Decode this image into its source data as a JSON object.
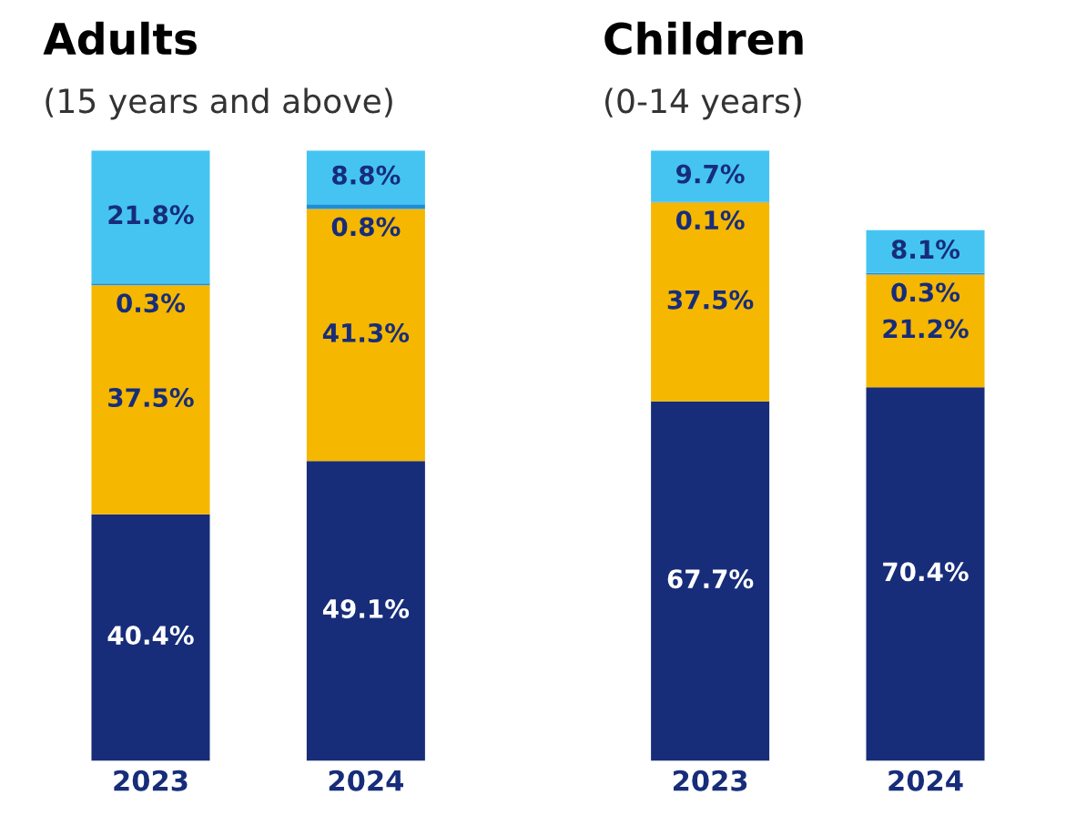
{
  "chart_data": [
    {
      "type": "bar",
      "title": "Adults",
      "subtitle": "(15 years and above)",
      "categories": [
        "2023",
        "2024"
      ],
      "stacked": true,
      "tick_labels": "x",
      "grid": false,
      "legend": false,
      "series": [
        {
          "color": "#172d7a",
          "values": [
            40.4,
            49.1
          ],
          "value_labels": [
            "40.4%",
            "49.1%"
          ]
        },
        {
          "color": "#f5b700",
          "values": [
            37.5,
            41.3
          ],
          "value_labels": [
            "37.5%",
            "41.3%"
          ]
        },
        {
          "color": "#1d8fd6",
          "values": [
            0.3,
            0.8
          ],
          "value_labels": [
            "0.3%",
            "0.8%"
          ]
        },
        {
          "color": "#45c4f2",
          "values": [
            21.8,
            8.8
          ],
          "value_labels": [
            "21.8%",
            "8.8%"
          ]
        }
      ]
    },
    {
      "type": "bar",
      "title": "Children",
      "subtitle": "(0-14 years)",
      "categories": [
        "2023",
        "2024"
      ],
      "stacked": true,
      "tick_labels": "x",
      "grid": false,
      "legend": false,
      "series": [
        {
          "color": "#172d7a",
          "values": [
            67.7,
            70.4
          ],
          "value_labels": [
            "67.7%",
            "70.4%"
          ]
        },
        {
          "color": "#f5b700",
          "values": [
            37.5,
            21.2
          ],
          "value_labels": [
            "37.5%",
            "21.2%"
          ]
        },
        {
          "color": "#1d8fd6",
          "values": [
            0.1,
            0.3
          ],
          "value_labels": [
            "0.1%",
            "0.3%"
          ]
        },
        {
          "color": "#45c4f2",
          "values": [
            9.7,
            8.1
          ],
          "value_labels": [
            "9.7%",
            "8.1%"
          ]
        }
      ]
    }
  ]
}
